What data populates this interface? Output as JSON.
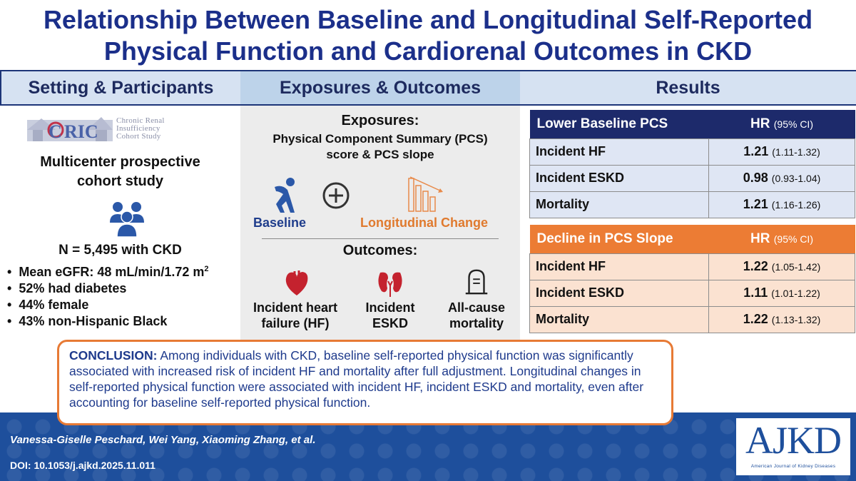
{
  "title": {
    "line1": "Relationship Between Baseline and Longitudinal Self-Reported",
    "line2": "Physical Function and Cardiorenal Outcomes in CKD"
  },
  "headers": {
    "setting": "Setting & Participants",
    "exposures": "Exposures & Outcomes",
    "results": "Results"
  },
  "setting": {
    "logo_name_line1": "Chronic Renal",
    "logo_name_line2": "Insufficiency",
    "logo_name_line3": "Cohort Study",
    "design_line1": "Multicenter prospective",
    "design_line2": "cohort study",
    "n": "N = 5,495 with CKD",
    "bullets": [
      "Mean eGFR: 48 mL/min/1.72 m",
      "52% had diabetes",
      "44% female",
      "43% non-Hispanic Black"
    ],
    "bullet_sup": "2"
  },
  "exposures": {
    "title": "Exposures:",
    "desc_line1": "Physical Component Summary (PCS)",
    "desc_line2": "score & PCS slope",
    "label_baseline": "Baseline",
    "label_longitudinal": "Longitudinal Change",
    "outcomes_title": "Outcomes:",
    "outcomes": [
      {
        "line1": "Incident heart",
        "line2": "failure (HF)"
      },
      {
        "line1": "Incident",
        "line2": "ESKD"
      },
      {
        "line1": "All-cause",
        "line2": "mortality"
      }
    ]
  },
  "results": {
    "table1": {
      "header": "Lower Baseline PCS",
      "hr_label": "HR",
      "ci_label": "(95% CI)",
      "rows": [
        {
          "outcome": "Incident HF",
          "hr": "1.21",
          "ci": "(1.11-1.32)"
        },
        {
          "outcome": "Incident ESKD",
          "hr": "0.98",
          "ci": "(0.93-1.04)"
        },
        {
          "outcome": "Mortality",
          "hr": "1.21",
          "ci": "(1.16-1.26)"
        }
      ]
    },
    "table2": {
      "header": "Decline in PCS Slope",
      "hr_label": "HR",
      "ci_label": "(95% CI)",
      "rows": [
        {
          "outcome": "Incident HF",
          "hr": "1.22",
          "ci": "(1.05-1.42)"
        },
        {
          "outcome": "Incident ESKD",
          "hr": "1.11",
          "ci": "(1.01-1.22)"
        },
        {
          "outcome": "Mortality",
          "hr": "1.22",
          "ci": "(1.13-1.32)"
        }
      ]
    }
  },
  "conclusion": {
    "lead": "CONCLUSION:",
    "text": "Among individuals with CKD, baseline self-reported physical function was significantly associated with increased risk of incident HF and mortality after full adjustment. Longitudinal changes in self-reported physical function were associated with incident HF, incident ESKD and mortality, even after accounting for baseline self-reported physical function."
  },
  "footer": {
    "authors": "Vanessa-Giselle Peschard, Wei Yang, Xiaoming Zhang, et al.",
    "doi": "DOI: 10.1053/j.ajkd.2025.11.011",
    "journal_logo": "AJKD",
    "journal_name": "American Journal of Kidney Diseases"
  },
  "colors": {
    "navy": "#1d2a6b",
    "title_blue": "#1b2f8a",
    "orange": "#ec7c34",
    "footer_blue": "#1e4f9c"
  }
}
